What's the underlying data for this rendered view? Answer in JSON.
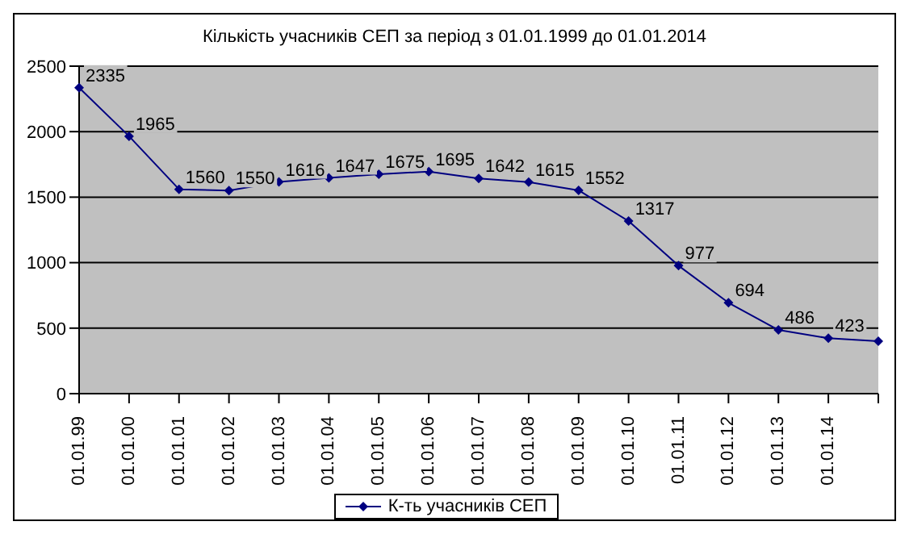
{
  "chart_data": {
    "type": "line",
    "title": "Кількість учасників СЕП за період з 01.01.1999 до 01.01.2014",
    "categories": [
      "01.01.99",
      "01.01.00",
      "01.01.01",
      "01.01.02",
      "01.01.03",
      "01.01.04",
      "01.01.05",
      "01.01.06",
      "01.01.07",
      "01.01.08",
      "01.01.09",
      "01.01.10",
      "01.01.11",
      "01.01.12",
      "01.01.13",
      "01.01.14",
      null
    ],
    "series": [
      {
        "name": "К-ть учасників СЕП",
        "color": "#000080",
        "values": [
          2335,
          1965,
          1560,
          1550,
          1616,
          1647,
          1675,
          1695,
          1642,
          1615,
          1552,
          1317,
          977,
          694,
          486,
          423,
          400
        ],
        "value_labels": [
          "2335",
          "1965",
          "1560",
          "1550",
          "1616",
          "1647",
          "1675",
          "1695",
          "1642",
          "1615",
          "1552",
          "1317",
          "977",
          "694",
          "486",
          "423",
          null
        ]
      }
    ],
    "ylim": [
      0,
      2500
    ],
    "yticks": [
      0,
      500,
      1000,
      1500,
      2000,
      2500
    ],
    "grid": "y",
    "legend": "bottom",
    "marker": "diamond",
    "line_style": "solid"
  }
}
